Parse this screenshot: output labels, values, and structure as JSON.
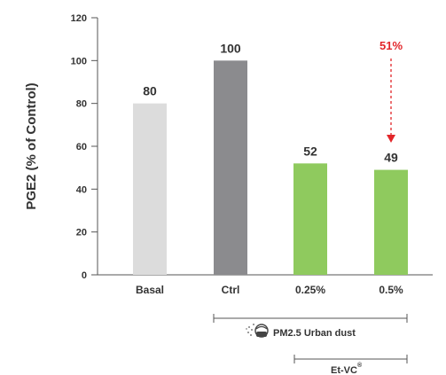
{
  "chart_data": {
    "type": "bar",
    "ylabel": "PGE2 (% of Control)",
    "ylim": [
      0,
      120
    ],
    "yticks": [
      "0",
      "20",
      "40",
      "60",
      "80",
      "100",
      "120"
    ],
    "categories": [
      "Basal",
      "Ctrl",
      "0.25%",
      "0.5%"
    ],
    "values": [
      80,
      100,
      52,
      49
    ],
    "value_labels": [
      "80",
      "100",
      "52",
      "49"
    ],
    "bar_colors": [
      "#dcdcdc",
      "#8b8b8e",
      "#8fca5e",
      "#8fca5e"
    ],
    "annotation": {
      "text": "51%",
      "color": "#e2262a",
      "category": "0.5%"
    },
    "groups": [
      {
        "label": "PM2.5 Urban dust",
        "icon": "dust-particles-icon",
        "from": "Ctrl",
        "to": "0.5%"
      },
      {
        "label": "Et-VC",
        "superscript": "®",
        "from": "0.25%",
        "to": "0.5%"
      }
    ],
    "grid": false
  }
}
